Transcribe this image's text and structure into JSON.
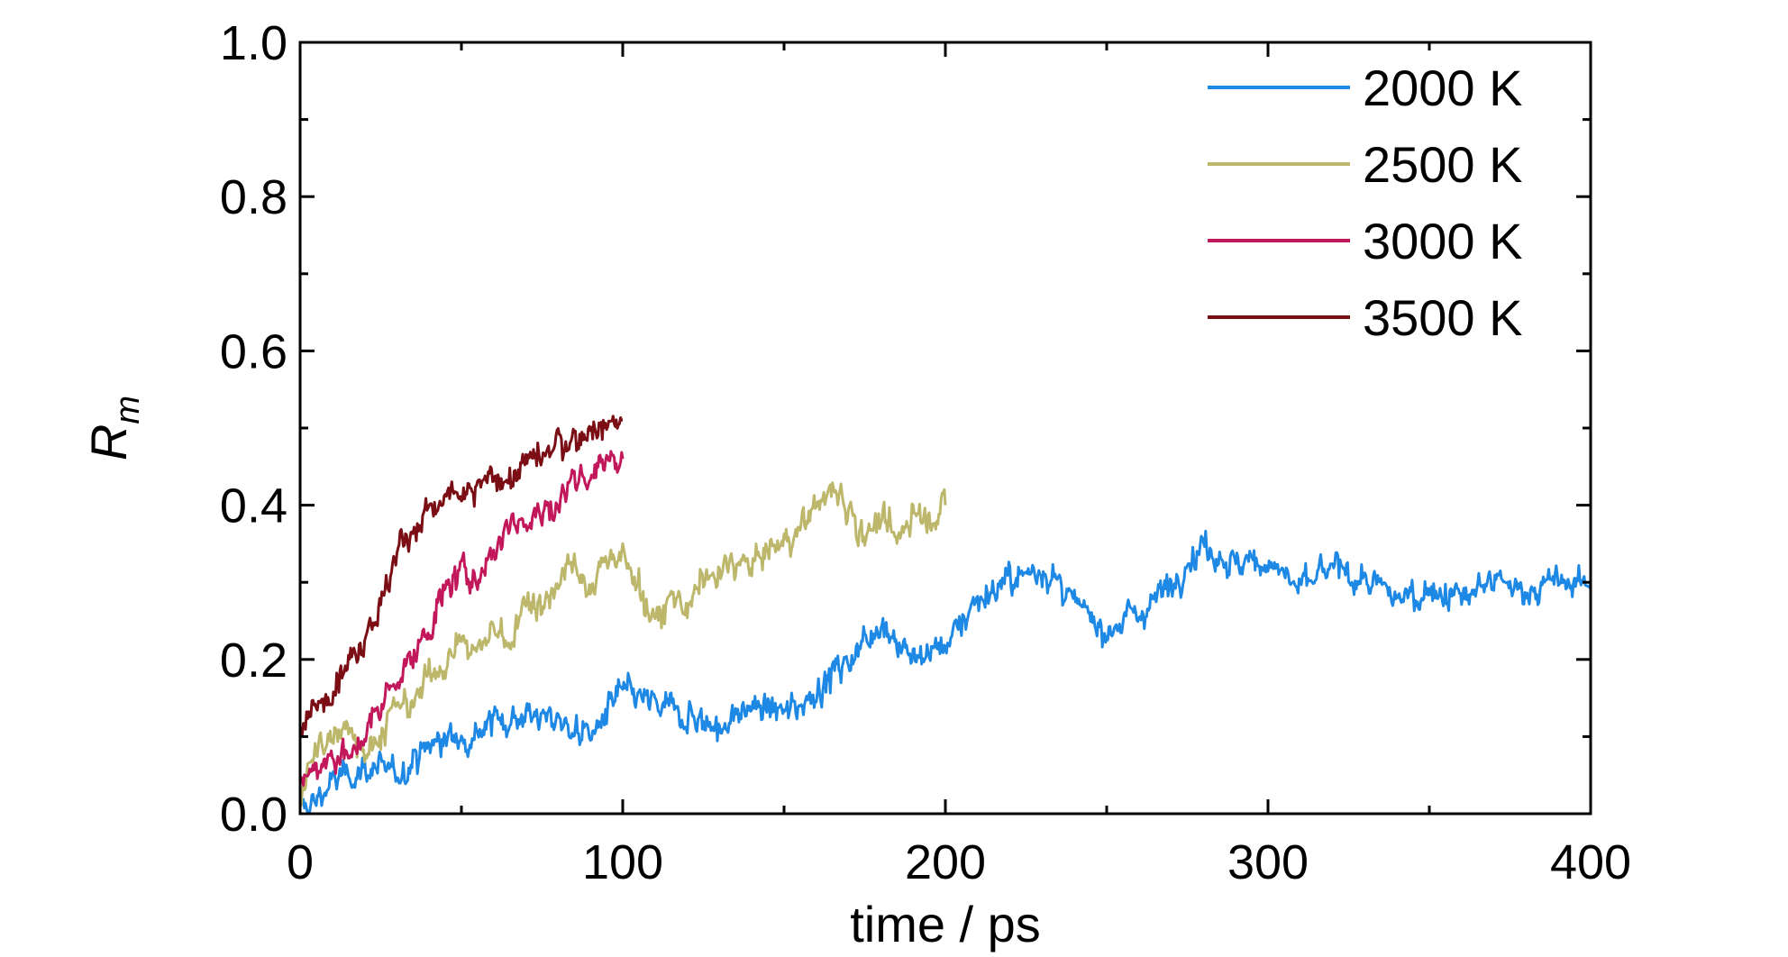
{
  "chart_data": {
    "type": "line",
    "title": "",
    "xlabel": "time / ps",
    "ylabel": {
      "main": "R",
      "sub": "m"
    },
    "xlim": [
      0,
      400
    ],
    "ylim": [
      0,
      1.0
    ],
    "x_ticks": [
      0,
      100,
      200,
      300,
      400
    ],
    "x_tick_labels": [
      "0",
      "100",
      "200",
      "300",
      "400"
    ],
    "y_ticks": [
      0,
      0.2,
      0.4,
      0.6,
      0.8,
      1.0
    ],
    "y_tick_labels": [
      "0.0",
      "0.2",
      "0.4",
      "0.6",
      "0.8",
      "1.0"
    ],
    "grid": false,
    "legend_position": "top-right",
    "series": [
      {
        "name": "2000 K",
        "color": "#1E88E5",
        "x": [
          0,
          5,
          10,
          20,
          30,
          40,
          50,
          60,
          70,
          80,
          90,
          100,
          110,
          120,
          130,
          140,
          150,
          160,
          170,
          180,
          190,
          200,
          210,
          220,
          230,
          240,
          250,
          260,
          270,
          280,
          290,
          300,
          310,
          320,
          330,
          340,
          350,
          360,
          370,
          380,
          390,
          400
        ],
        "y": [
          0.0,
          0.02,
          0.04,
          0.06,
          0.05,
          0.09,
          0.1,
          0.12,
          0.13,
          0.12,
          0.1,
          0.16,
          0.14,
          0.13,
          0.11,
          0.14,
          0.13,
          0.16,
          0.2,
          0.25,
          0.2,
          0.22,
          0.28,
          0.3,
          0.32,
          0.27,
          0.24,
          0.26,
          0.3,
          0.35,
          0.32,
          0.33,
          0.29,
          0.32,
          0.3,
          0.28,
          0.29,
          0.28,
          0.3,
          0.29,
          0.3,
          0.3
        ]
      },
      {
        "name": "2500 K",
        "color": "#BDB76B",
        "x": [
          0,
          5,
          10,
          15,
          20,
          25,
          30,
          35,
          40,
          45,
          50,
          55,
          60,
          65,
          70,
          75,
          80,
          85,
          90,
          95,
          100,
          105,
          110,
          115,
          120,
          125,
          130,
          135,
          140,
          145,
          150,
          155,
          160,
          165,
          170,
          175,
          180,
          185,
          190,
          195,
          200
        ],
        "y": [
          0.02,
          0.08,
          0.1,
          0.12,
          0.08,
          0.1,
          0.14,
          0.14,
          0.18,
          0.2,
          0.22,
          0.21,
          0.24,
          0.22,
          0.28,
          0.27,
          0.3,
          0.32,
          0.28,
          0.34,
          0.33,
          0.3,
          0.24,
          0.28,
          0.27,
          0.3,
          0.31,
          0.33,
          0.32,
          0.34,
          0.35,
          0.37,
          0.4,
          0.42,
          0.4,
          0.36,
          0.38,
          0.35,
          0.4,
          0.38,
          0.4
        ]
      },
      {
        "name": "3000 K",
        "color": "#C2185B",
        "x": [
          0,
          5,
          10,
          15,
          20,
          25,
          30,
          35,
          40,
          45,
          50,
          55,
          60,
          65,
          70,
          75,
          80,
          85,
          90,
          95,
          100
        ],
        "y": [
          0.04,
          0.06,
          0.08,
          0.07,
          0.1,
          0.14,
          0.18,
          0.2,
          0.24,
          0.29,
          0.31,
          0.31,
          0.34,
          0.38,
          0.38,
          0.39,
          0.4,
          0.44,
          0.44,
          0.46,
          0.46
        ]
      },
      {
        "name": "3500 K",
        "color": "#7B0D14",
        "x": [
          0,
          5,
          10,
          15,
          20,
          25,
          30,
          35,
          40,
          45,
          50,
          55,
          60,
          65,
          70,
          75,
          80,
          85,
          90,
          95,
          100
        ],
        "y": [
          0.1,
          0.14,
          0.17,
          0.2,
          0.23,
          0.27,
          0.34,
          0.37,
          0.39,
          0.41,
          0.41,
          0.42,
          0.44,
          0.43,
          0.46,
          0.46,
          0.48,
          0.48,
          0.5,
          0.5,
          0.51
        ]
      }
    ]
  }
}
